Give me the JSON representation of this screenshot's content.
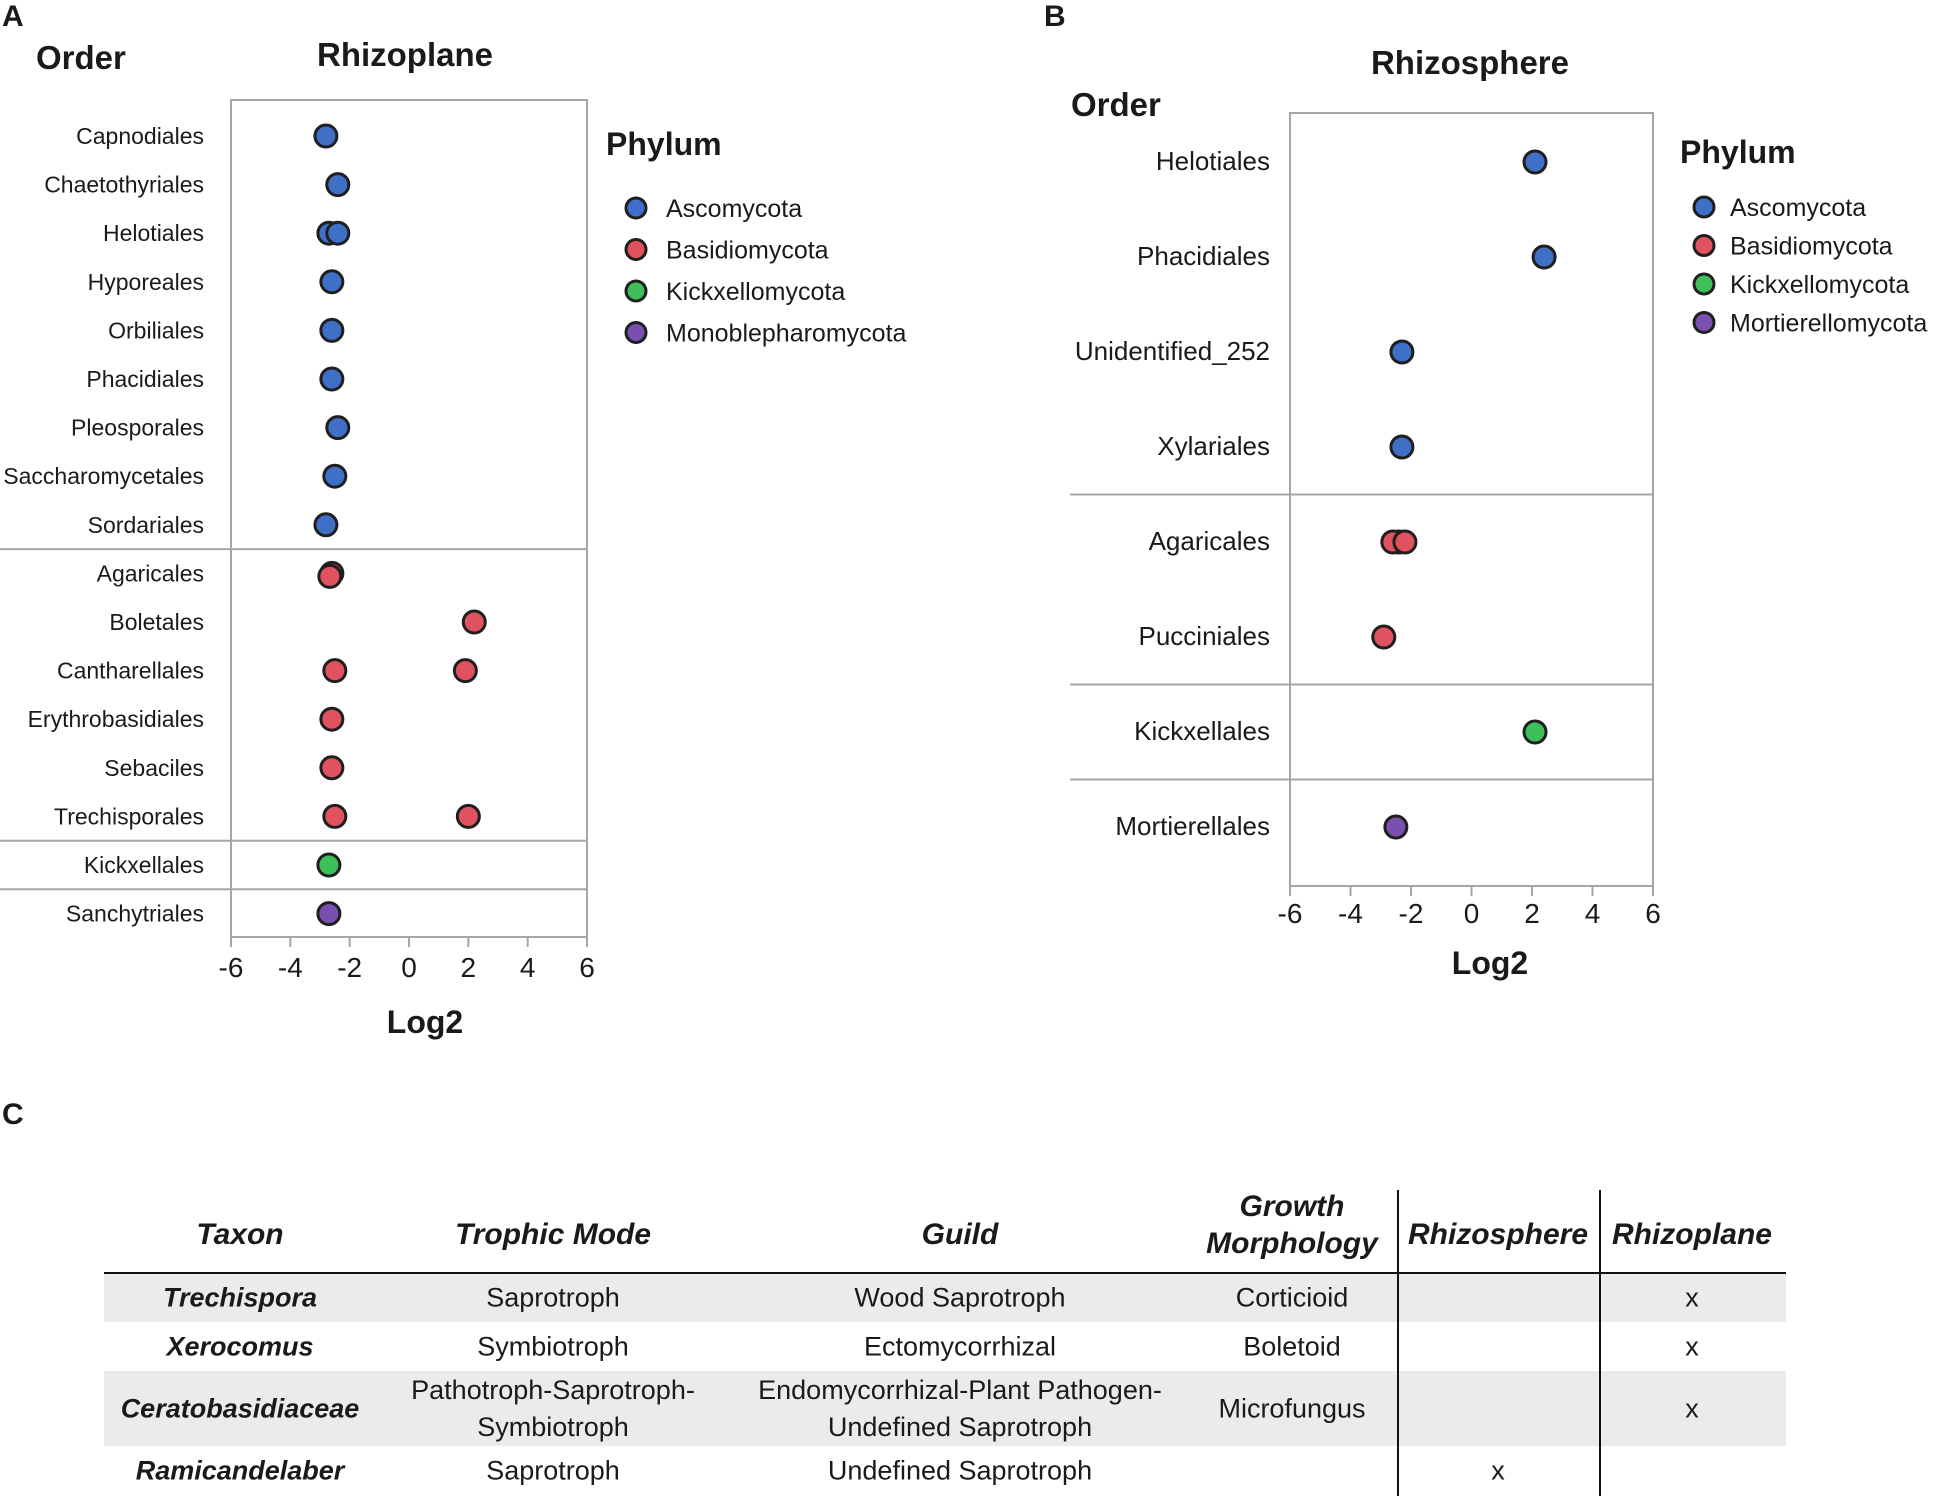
{
  "panels": {
    "A": {
      "letter": "A",
      "title": "Rhizoplane",
      "order_header": "Order",
      "xlabel": "Log2",
      "ticks": [
        -6,
        -4,
        -2,
        0,
        2,
        4,
        6
      ],
      "xlim": [
        -6,
        6
      ],
      "groups": [
        {
          "phylum": "Ascomycota",
          "orders": [
            "Capnodiales",
            "Chaetothyriales",
            "Helotiales",
            "Hyporeales",
            "Orbiliales",
            "Phacidiales",
            "Pleosporales",
            "Saccharomycetales",
            "Sordariales"
          ]
        },
        {
          "phylum": "Basidiomycota",
          "orders": [
            "Agaricales",
            "Boletales",
            "Cantharellales",
            "Erythrobasidiales",
            "Sebaciles",
            "Trechisporales"
          ]
        },
        {
          "phylum": "Kickxellomycota",
          "orders": [
            "Kickxellales"
          ]
        },
        {
          "phylum": "Monoblepharomycota",
          "orders": [
            "Sanchytriales"
          ]
        }
      ],
      "legend": {
        "title": "Phylum",
        "items": [
          "Ascomycota",
          "Basidiomycota",
          "Kickxellomycota",
          "Monoblepharomycota"
        ]
      }
    },
    "B": {
      "letter": "B",
      "title": "Rhizosphere",
      "order_header": "Order",
      "xlabel": "Log2",
      "ticks": [
        -6,
        -4,
        -2,
        0,
        2,
        4,
        6
      ],
      "xlim": [
        -6,
        6
      ],
      "groups": [
        {
          "phylum": "Ascomycota",
          "orders": [
            "Helotiales",
            "Phacidiales",
            "Unidentified_252",
            "Xylariales"
          ]
        },
        {
          "phylum": "Basidiomycota",
          "orders": [
            "Agaricales",
            "Pucciniales"
          ]
        },
        {
          "phylum": "Kickxellomycota",
          "orders": [
            "Kickxellales"
          ]
        },
        {
          "phylum": "Mortierellomycota",
          "orders": [
            "Mortierellales"
          ]
        }
      ],
      "legend": {
        "title": "Phylum",
        "items": [
          "Ascomycota",
          "Basidiomycota",
          "Kickxellomycota",
          "Mortierellomycota"
        ]
      }
    },
    "C": {
      "letter": "C"
    }
  },
  "colors": {
    "Ascomycota": "#3f6fc6",
    "Basidiomycota": "#e0525f",
    "Kickxellomycota": "#3fbf5a",
    "Monoblepharomycota": "#7a4fb0",
    "Mortierellomycota": "#7a4fb0",
    "frame": "#a6a6a6",
    "outline": "#1f1f1f"
  },
  "chart_data": [
    {
      "panel": "A",
      "type": "scatter",
      "title": "Rhizoplane",
      "xlabel": "Log2",
      "ylabel": "Order",
      "xlim": [
        -6,
        6
      ],
      "points": [
        {
          "order": "Capnodiales",
          "phylum": "Ascomycota",
          "x": -2.8
        },
        {
          "order": "Chaetothyriales",
          "phylum": "Ascomycota",
          "x": -2.4
        },
        {
          "order": "Helotiales",
          "phylum": "Ascomycota",
          "x": -2.7
        },
        {
          "order": "Helotiales",
          "phylum": "Ascomycota",
          "x": -2.4
        },
        {
          "order": "Hyporeales",
          "phylum": "Ascomycota",
          "x": -2.6
        },
        {
          "order": "Orbiliales",
          "phylum": "Ascomycota",
          "x": -2.6
        },
        {
          "order": "Phacidiales",
          "phylum": "Ascomycota",
          "x": -2.6
        },
        {
          "order": "Pleosporales",
          "phylum": "Ascomycota",
          "x": -2.4
        },
        {
          "order": "Saccharomycetales",
          "phylum": "Ascomycota",
          "x": -2.5
        },
        {
          "order": "Sordariales",
          "phylum": "Ascomycota",
          "x": -2.8
        },
        {
          "order": "Agaricales",
          "phylum": "Basidiomycota",
          "x": -2.6
        },
        {
          "order": "Agaricales",
          "phylum": "Basidiomycota",
          "x": -2.6
        },
        {
          "order": "Boletales",
          "phylum": "Basidiomycota",
          "x": 2.2
        },
        {
          "order": "Cantharellales",
          "phylum": "Basidiomycota",
          "x": -2.5
        },
        {
          "order": "Cantharellales",
          "phylum": "Basidiomycota",
          "x": 1.9
        },
        {
          "order": "Erythrobasidiales",
          "phylum": "Basidiomycota",
          "x": -2.6
        },
        {
          "order": "Sebaciles",
          "phylum": "Basidiomycota",
          "x": -2.6
        },
        {
          "order": "Trechisporales",
          "phylum": "Basidiomycota",
          "x": -2.5
        },
        {
          "order": "Trechisporales",
          "phylum": "Basidiomycota",
          "x": 2.0
        },
        {
          "order": "Kickxellales",
          "phylum": "Kickxellomycota",
          "x": -2.7
        },
        {
          "order": "Sanchytriales",
          "phylum": "Monoblepharomycota",
          "x": -2.7
        }
      ]
    },
    {
      "panel": "B",
      "type": "scatter",
      "title": "Rhizosphere",
      "xlabel": "Log2",
      "ylabel": "Order",
      "xlim": [
        -6,
        6
      ],
      "points": [
        {
          "order": "Helotiales",
          "phylum": "Ascomycota",
          "x": 2.1
        },
        {
          "order": "Phacidiales",
          "phylum": "Ascomycota",
          "x": 2.4
        },
        {
          "order": "Unidentified_252",
          "phylum": "Ascomycota",
          "x": -2.3
        },
        {
          "order": "Xylariales",
          "phylum": "Ascomycota",
          "x": -2.3
        },
        {
          "order": "Agaricales",
          "phylum": "Basidiomycota",
          "x": -2.4
        },
        {
          "order": "Agaricales",
          "phylum": "Basidiomycota",
          "x": -2.6
        },
        {
          "order": "Agaricales",
          "phylum": "Basidiomycota",
          "x": -2.2
        },
        {
          "order": "Pucciniales",
          "phylum": "Basidiomycota",
          "x": -2.9
        },
        {
          "order": "Kickxellales",
          "phylum": "Kickxellomycota",
          "x": 2.1
        },
        {
          "order": "Mortierellales",
          "phylum": "Mortierellomycota",
          "x": -2.5
        }
      ]
    },
    {
      "panel": "C",
      "type": "table",
      "headers": [
        "Taxon",
        "Trophic Mode",
        "Guild",
        "Growth Morphology",
        "Rhizosphere",
        "Rhizoplane"
      ],
      "rows": [
        {
          "taxon": "Trechispora",
          "trophic": "Saprotroph",
          "guild": "Wood Saprotroph",
          "growth": "Corticioid",
          "rhizosphere": "",
          "rhizoplane": "x"
        },
        {
          "taxon": "Xerocomus",
          "trophic": "Symbiotroph",
          "guild": "Ectomycorrhizal",
          "growth": "Boletoid",
          "rhizosphere": "",
          "rhizoplane": "x"
        },
        {
          "taxon": "Ceratobasidiaceae",
          "trophic": "Pathotroph-Saprotroph-Symbiotroph",
          "guild": "Endomycorrhizal-Plant Pathogen-Undefined Saprotroph",
          "growth": "Microfungus",
          "rhizosphere": "",
          "rhizoplane": "x"
        },
        {
          "taxon": "Ramicandelaber",
          "trophic": "Saprotroph",
          "guild": "Undefined Saprotroph",
          "growth": "",
          "rhizosphere": "x",
          "rhizoplane": ""
        }
      ]
    }
  ]
}
